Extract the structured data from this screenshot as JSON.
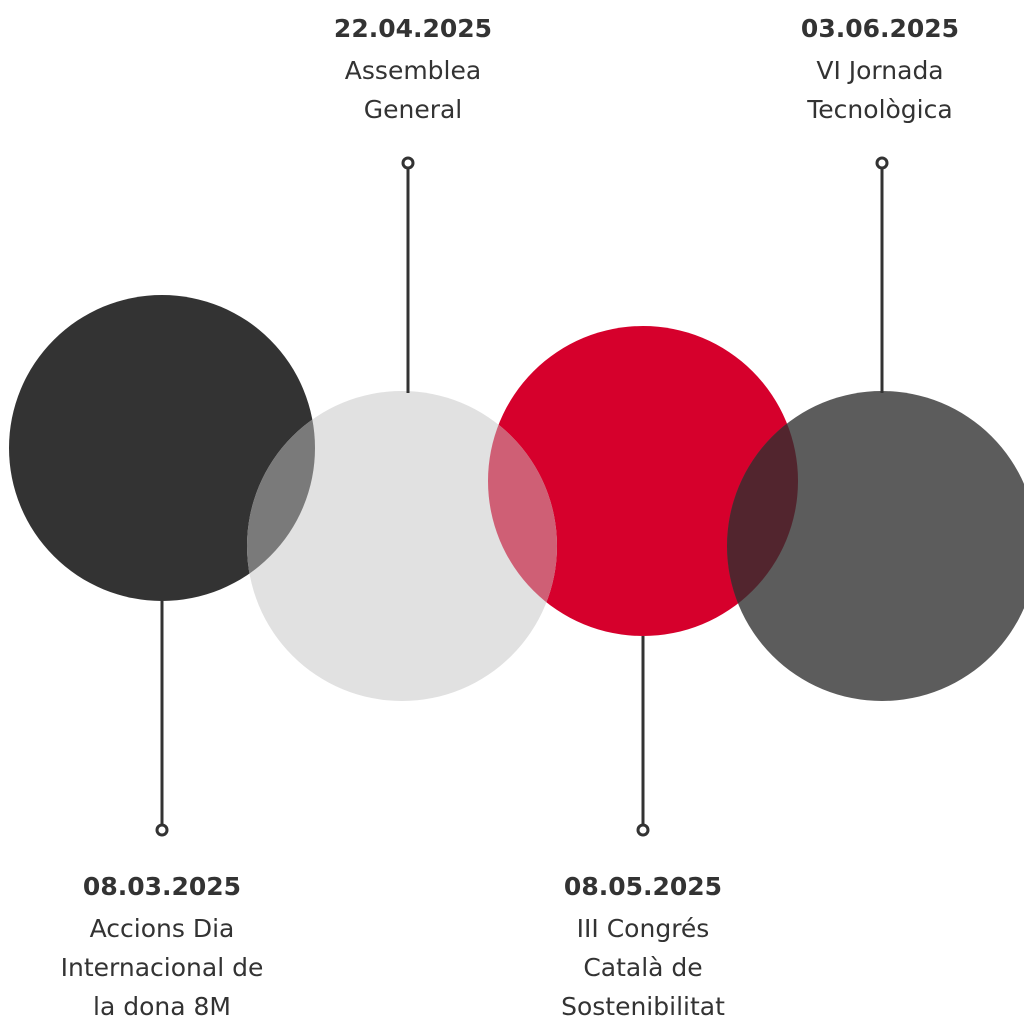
{
  "events": [
    {
      "date": "08.03.2025",
      "lines": [
        "Accions Dia",
        "Internacional de",
        "la dona 8M"
      ]
    },
    {
      "date": "22.04.2025",
      "lines": [
        "Assemblea",
        "General"
      ]
    },
    {
      "date": "08.05.2025",
      "lines": [
        "III Congrés",
        "Català de",
        "Sostenibilitat"
      ]
    },
    {
      "date": "03.06.2025",
      "lines": [
        "VI Jornada",
        "Tecnològica"
      ]
    }
  ]
}
